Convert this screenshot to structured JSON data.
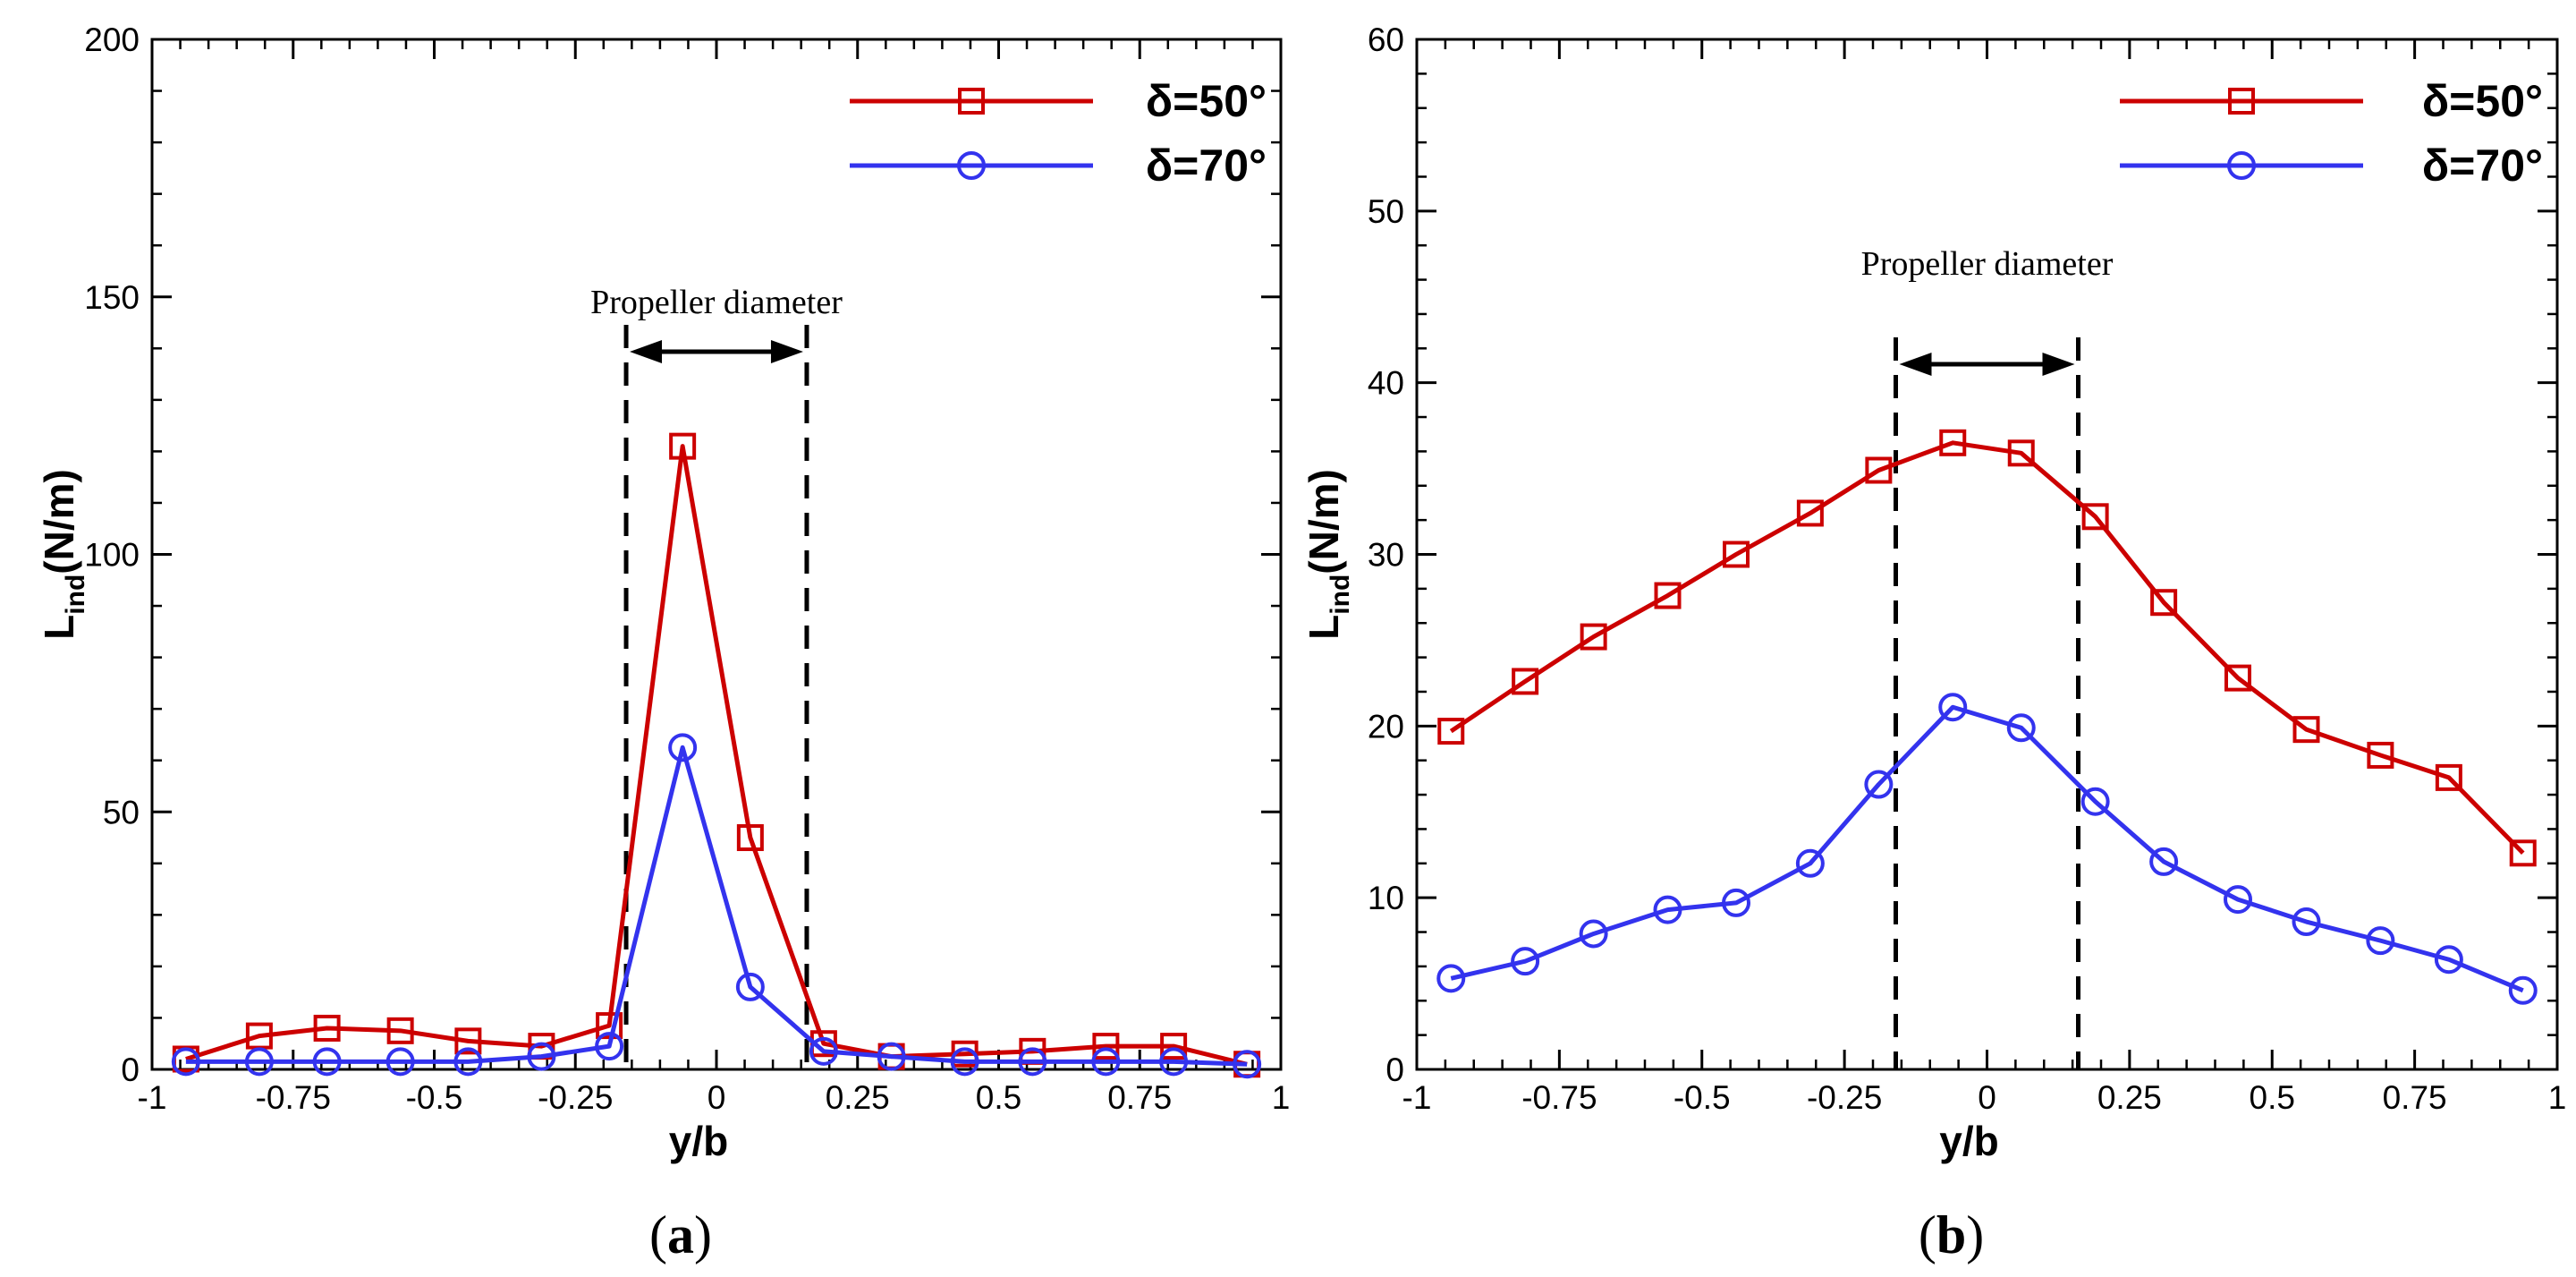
{
  "colors": {
    "series1": "#cc0000",
    "series2": "#3333ee",
    "axis": "#000000"
  },
  "chart_data": [
    {
      "type": "line",
      "panel_label": "(a)",
      "panel_letter": "a",
      "xlabel": "y/b",
      "ylabel_main": "L",
      "ylabel_sub": "ind",
      "ylabel_unit": "(N/m)",
      "xlim": [
        -1,
        1
      ],
      "ylim": [
        0,
        200
      ],
      "x_ticks": [
        -1,
        -0.75,
        -0.5,
        -0.25,
        0,
        0.25,
        0.5,
        0.75,
        1
      ],
      "x_tick_labels": [
        "-1",
        "-0.75",
        "-0.5",
        "-0.25",
        "0",
        "0.25",
        "0.5",
        "0.75",
        "1"
      ],
      "y_ticks": [
        0,
        50,
        100,
        150,
        200
      ],
      "y_tick_labels": [
        "0",
        "50",
        "100",
        "150",
        "200"
      ],
      "annotation": "Propeller diameter",
      "propeller_bounds": [
        -0.16,
        0.16
      ],
      "x": [
        -0.94,
        -0.81,
        -0.69,
        -0.56,
        -0.44,
        -0.31,
        -0.19,
        -0.06,
        0.06,
        0.19,
        0.31,
        0.44,
        0.56,
        0.69,
        0.81,
        0.94
      ],
      "series": [
        {
          "name": "δ=50°",
          "marker": "square",
          "values": [
            2,
            6.5,
            8,
            7.5,
            5.5,
            4.5,
            8.5,
            121,
            45,
            5,
            2.5,
            3,
            3.5,
            4.5,
            4.5,
            1
          ]
        },
        {
          "name": "δ=70°",
          "marker": "circle",
          "values": [
            1.5,
            1.5,
            1.5,
            1.5,
            1.5,
            2.5,
            4.5,
            62.5,
            16,
            3.5,
            2.5,
            1.5,
            1.5,
            1.5,
            1.5,
            1
          ]
        }
      ],
      "legend_position": "top-right"
    },
    {
      "type": "line",
      "panel_label": "(b)",
      "panel_letter": "b",
      "xlabel": "y/b",
      "ylabel_main": "L",
      "ylabel_sub": "ind",
      "ylabel_unit": "(N/m)",
      "xlim": [
        -1,
        1
      ],
      "ylim": [
        0,
        60
      ],
      "x_ticks": [
        -1,
        -0.75,
        -0.5,
        -0.25,
        0,
        0.25,
        0.5,
        0.75,
        1
      ],
      "x_tick_labels": [
        "-1",
        "-0.75",
        "-0.5",
        "-0.25",
        "0",
        "0.25",
        "0.5",
        "0.75",
        "1"
      ],
      "y_ticks": [
        0,
        10,
        20,
        30,
        40,
        50,
        60
      ],
      "y_tick_labels": [
        "0",
        "10",
        "20",
        "30",
        "40",
        "50",
        "60"
      ],
      "annotation": "Propeller diameter",
      "propeller_bounds": [
        -0.16,
        0.16
      ],
      "x": [
        -0.94,
        -0.81,
        -0.69,
        -0.56,
        -0.44,
        -0.31,
        -0.19,
        -0.06,
        0.06,
        0.19,
        0.31,
        0.44,
        0.56,
        0.69,
        0.81,
        0.94
      ],
      "series": [
        {
          "name": "δ=50°",
          "marker": "square",
          "values": [
            19.7,
            22.6,
            25.2,
            27.6,
            30,
            32.4,
            34.9,
            36.5,
            35.9,
            32.2,
            27.2,
            22.8,
            19.8,
            18.3,
            17,
            12.6
          ]
        },
        {
          "name": "δ=70°",
          "marker": "circle",
          "values": [
            5.3,
            6.3,
            7.9,
            9.3,
            9.7,
            12,
            16.6,
            21.1,
            19.9,
            15.6,
            12.1,
            9.9,
            8.6,
            7.5,
            6.4,
            4.6
          ]
        }
      ],
      "legend_position": "top-right"
    }
  ]
}
